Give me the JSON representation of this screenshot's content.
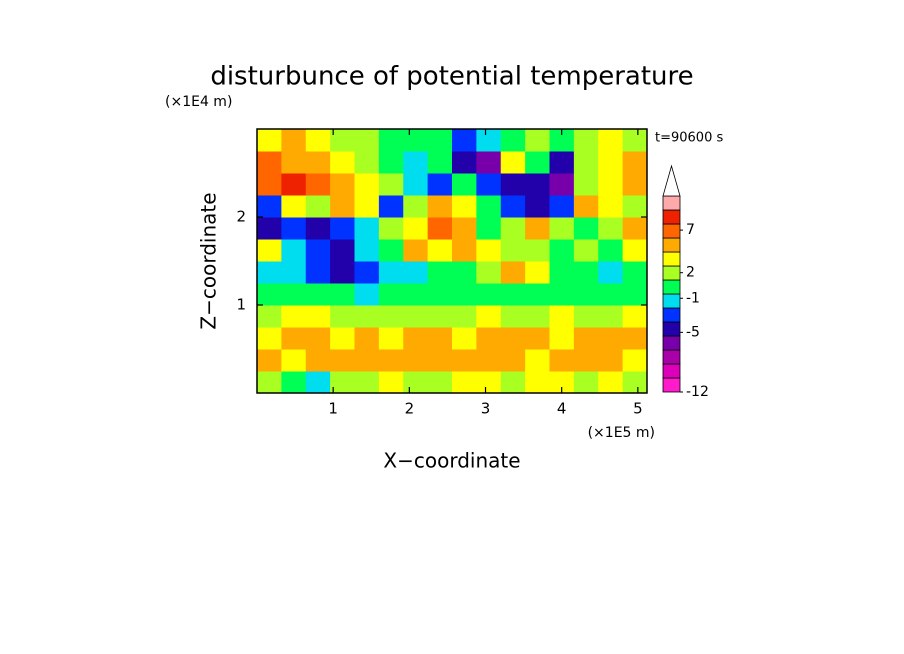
{
  "chart_data": {
    "type": "contour",
    "title": "disturbunce of potential temperature",
    "xlabel": "X−coordinate",
    "ylabel": "Z−coordinate",
    "x_unit": "(×1E5 m)",
    "y_unit": "(×1E4 m)",
    "annotation": "t=90600 s",
    "xlim": [
      0,
      5.12
    ],
    "ylim": [
      0,
      3
    ],
    "xticks": [
      1,
      2,
      3,
      4,
      5
    ],
    "yticks": [
      1,
      2
    ],
    "x": [
      0.16,
      0.48,
      0.8,
      1.12,
      1.44,
      1.76,
      2.08,
      2.4,
      2.72,
      3.04,
      3.36,
      3.68,
      4.0,
      4.32,
      4.64,
      4.96
    ],
    "y": [
      0.125,
      0.375,
      0.625,
      0.875,
      1.125,
      1.375,
      1.625,
      1.875,
      2.125,
      2.375,
      2.625,
      2.875
    ],
    "z": [
      [
        2,
        0.3,
        -1.3,
        2,
        2,
        3.5,
        2,
        2,
        3.5,
        3.5,
        2,
        3.5,
        3.5,
        2,
        3.5,
        2
      ],
      [
        5,
        3.5,
        5,
        5,
        5,
        5,
        5,
        5,
        5,
        5,
        5,
        3.5,
        5,
        5,
        5,
        3.5
      ],
      [
        3.5,
        5,
        5,
        3.5,
        5,
        3.5,
        5,
        5,
        3.5,
        5,
        5,
        5,
        3.5,
        5,
        5,
        5
      ],
      [
        2,
        3.5,
        3.5,
        2,
        2,
        2,
        2,
        2,
        2,
        3.5,
        2,
        2,
        3.5,
        2,
        2,
        3.5
      ],
      [
        0.3,
        0.3,
        0.3,
        0.3,
        -1.3,
        0.3,
        0.3,
        0.3,
        0.3,
        0.3,
        0.3,
        0.3,
        0.3,
        0.3,
        0.3,
        0.3
      ],
      [
        -1.3,
        -1.3,
        -3,
        -4.6,
        -3,
        -1.3,
        -1.3,
        0.3,
        0.3,
        2,
        5,
        3.5,
        0.3,
        0.3,
        -1.3,
        0.3
      ],
      [
        3.5,
        -1.3,
        -3,
        -4.6,
        -1.3,
        0.3,
        5,
        3.5,
        5,
        3.5,
        2,
        2,
        0.3,
        2,
        0.3,
        3.5
      ],
      [
        -4.6,
        -3,
        -4.6,
        -3,
        -1.3,
        2,
        3.5,
        7,
        5,
        0.3,
        2,
        5,
        2,
        0.3,
        2,
        5
      ],
      [
        -3,
        3.5,
        2,
        5,
        3.5,
        -3,
        2,
        5,
        3.5,
        0.3,
        -3,
        -4.6,
        -3,
        5,
        3.5,
        2
      ],
      [
        7,
        8.5,
        7,
        5,
        3.5,
        2,
        -1.3,
        -3,
        0.3,
        -3,
        -4.6,
        -4.6,
        -6,
        2,
        3.5,
        5
      ],
      [
        7,
        5,
        5,
        3.5,
        2,
        0.3,
        -1.3,
        0.3,
        -4.6,
        -6,
        3.5,
        0.3,
        -4.6,
        2,
        3.5,
        5
      ],
      [
        3.5,
        5,
        3.5,
        2,
        2,
        0.3,
        0.3,
        0.3,
        -3,
        -1.3,
        0.3,
        2,
        0.3,
        2,
        3.5,
        2
      ]
    ],
    "clim": [
      -12,
      11
    ],
    "cticks": [
      -12,
      -5,
      -1,
      2,
      7
    ],
    "colors": [
      "#ff1acc",
      "#dd00bb",
      "#aa00aa",
      "#7700aa",
      "#2200aa",
      "#0033ff",
      "#00ddee",
      "#00ff55",
      "#aaff22",
      "#ffff00",
      "#ffaa00",
      "#ff6600",
      "#ee2200",
      "#ffaaaa"
    ],
    "extend_color": "#ffffff"
  }
}
